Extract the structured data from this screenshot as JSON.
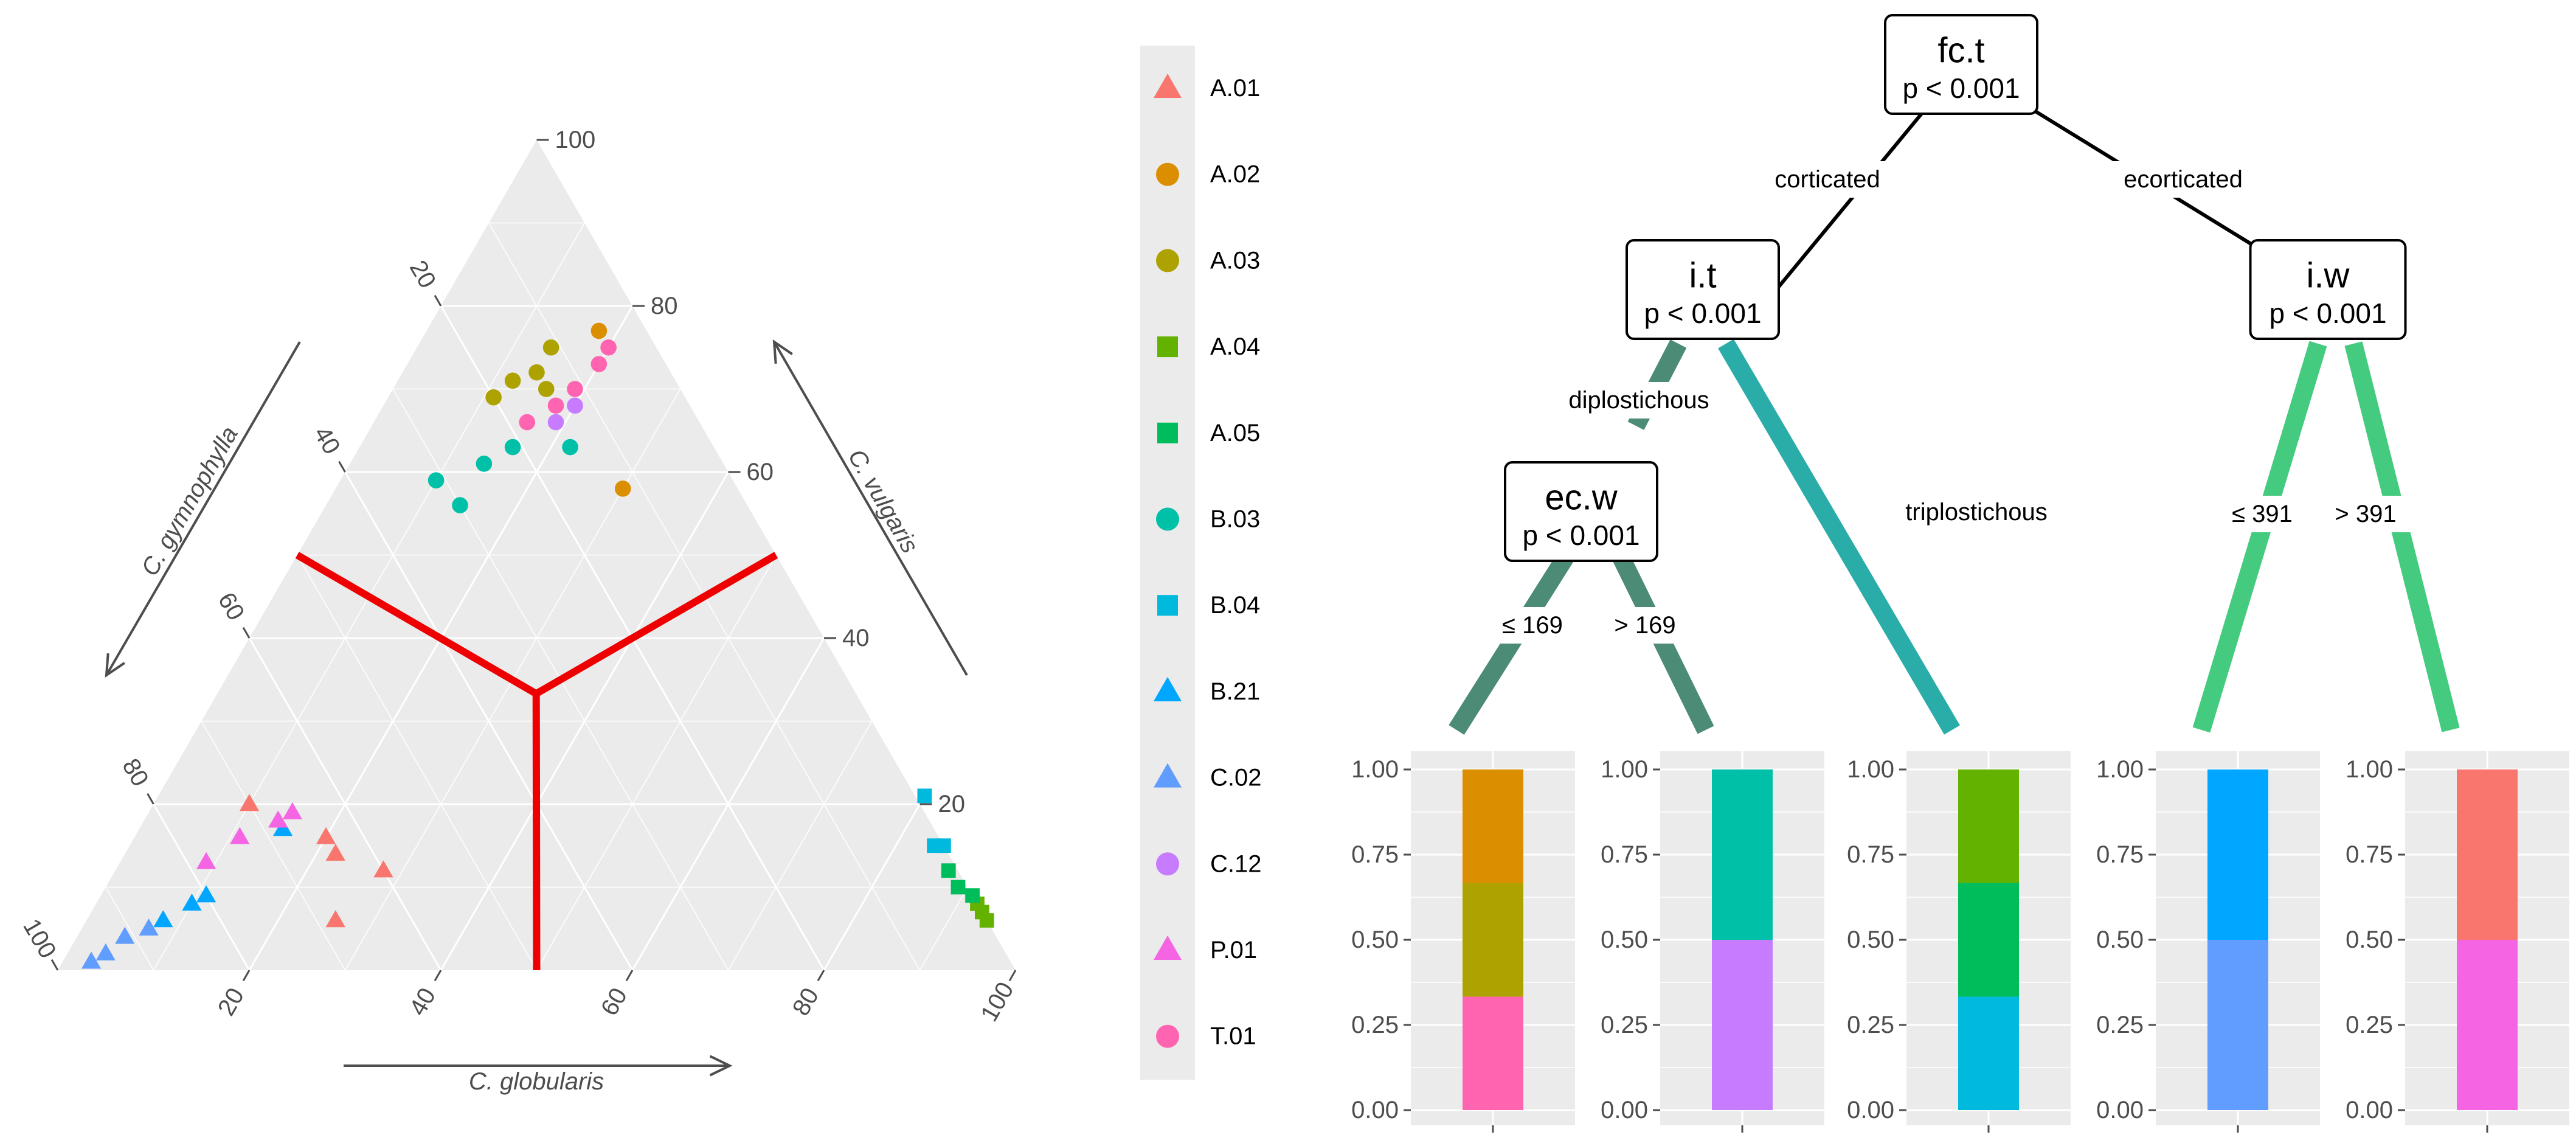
{
  "chart_data": [
    {
      "type": "scatter",
      "subtype": "ternary",
      "axes": {
        "bottom": {
          "label": "C. globularis",
          "ticks": [
            "20",
            "40",
            "60",
            "80",
            "100"
          ]
        },
        "right": {
          "label": "C. vulgaris",
          "ticks": [
            "20",
            "40",
            "60",
            "80",
            "100"
          ]
        },
        "left": {
          "label": "C. gymnophylla",
          "ticks": [
            "20",
            "40",
            "60",
            "80",
            "100"
          ]
        }
      },
      "grid": true,
      "boundary_point": {
        "globularis": 33.3,
        "vulgaris": 33.3,
        "gymnophylla": 33.3
      },
      "boundary_color": "#ee0000",
      "groups": [
        {
          "name": "A.01",
          "shape": "triangle",
          "color": "#F8766D",
          "points": [
            [
              28,
              12,
              60
            ],
            [
              26,
              6,
              68
            ],
            [
              22,
              14,
              64
            ],
            [
              20,
              16,
              64
            ],
            [
              10,
              20,
              70
            ]
          ]
        },
        {
          "name": "A.02",
          "shape": "circle",
          "color": "#DB8E00",
          "points": [
            [
              18,
              77,
              5
            ],
            [
              30,
              58,
              12
            ]
          ]
        },
        {
          "name": "A.03",
          "shape": "circle",
          "color": "#AEA200",
          "points": [
            [
              14,
              75,
              11
            ],
            [
              14,
              72,
              14
            ],
            [
              11,
              69,
              20
            ],
            [
              12,
              71,
              17
            ],
            [
              16,
              70,
              14
            ]
          ]
        },
        {
          "name": "A.04",
          "shape": "square",
          "color": "#64B200",
          "points": [
            [
              94,
              6,
              0
            ],
            [
              93,
              7,
              0
            ],
            [
              92,
              8,
              0
            ]
          ]
        },
        {
          "name": "A.05",
          "shape": "square",
          "color": "#00BD5C",
          "points": [
            [
              91,
              9,
              0
            ],
            [
              89,
              10,
              1
            ],
            [
              87,
              12,
              1
            ]
          ]
        },
        {
          "name": "B.03",
          "shape": "circle",
          "color": "#00C1A7",
          "points": [
            [
              22,
              63,
              15
            ],
            [
              16,
              63,
              21
            ],
            [
              14,
              61,
              25
            ],
            [
              10,
              59,
              31
            ],
            [
              14,
              56,
              30
            ]
          ]
        },
        {
          "name": "B.04",
          "shape": "square",
          "color": "#00BADE",
          "points": [
            [
              85,
              15,
              0
            ],
            [
              84,
              15,
              1
            ],
            [
              80,
              21,
              0
            ]
          ]
        },
        {
          "name": "B.21",
          "shape": "triangle",
          "color": "#00A6FF",
          "points": [
            [
              15,
              17,
              68
            ],
            [
              11,
              9,
              80
            ],
            [
              10,
              8,
              82
            ],
            [
              8,
              6,
              86
            ]
          ]
        },
        {
          "name": "C.02",
          "shape": "triangle",
          "color": "#619CFF",
          "points": [
            [
              7,
              5,
              88
            ],
            [
              5,
              4,
              91
            ],
            [
              4,
              2,
              94
            ],
            [
              3,
              1,
              96
            ]
          ]
        },
        {
          "name": "C.12",
          "shape": "circle",
          "color": "#C77CFF",
          "points": [
            [
              20,
              68,
              12
            ],
            [
              19,
              66,
              15
            ]
          ]
        },
        {
          "name": "P.01",
          "shape": "triangle",
          "color": "#F564E3",
          "points": [
            [
              15,
              19,
              66
            ],
            [
              14,
              18,
              68
            ],
            [
              11,
              16,
              73
            ],
            [
              9,
              13,
              78
            ]
          ]
        },
        {
          "name": "T.01",
          "shape": "circle",
          "color": "#FF64B0",
          "points": [
            [
              20,
              75,
              5
            ],
            [
              20,
              73,
              7
            ],
            [
              19,
              70,
              11
            ],
            [
              16,
              66,
              18
            ],
            [
              18,
              68,
              14
            ]
          ]
        }
      ]
    },
    {
      "type": "tree",
      "nodes": [
        {
          "id": "n1",
          "var": "fc.t",
          "p": "p <  0.001"
        },
        {
          "id": "n2",
          "var": "i.t",
          "p": "p <  0.001"
        },
        {
          "id": "n3",
          "var": "ec.w",
          "p": "p <  0.001"
        },
        {
          "id": "n4",
          "var": "i.w",
          "p": "p <  0.001"
        }
      ],
      "edges": [
        {
          "from": "n1",
          "to": "n2",
          "label": "corticated"
        },
        {
          "from": "n1",
          "to": "n4",
          "label": "ecorticated"
        },
        {
          "from": "n2",
          "to": "n3",
          "label": "diplostichous"
        },
        {
          "from": "n2",
          "to": "leaf3",
          "label": "triplostichous"
        },
        {
          "from": "n3",
          "to": "leaf1",
          "label": "≤  169"
        },
        {
          "from": "n3",
          "to": "leaf2",
          "label": ">  169"
        },
        {
          "from": "n4",
          "to": "leaf4",
          "label": "≤  391"
        },
        {
          "from": "n4",
          "to": "leaf5",
          "label": ">  391"
        }
      ],
      "leaf_axis": {
        "ticks": [
          "0.00",
          "0.25",
          "0.50",
          "0.75",
          "1.00"
        ],
        "ylim": [
          0,
          1
        ]
      },
      "leaves": [
        {
          "id": "leaf1",
          "segments": [
            {
              "group": "T.01",
              "color": "#FF64B0",
              "value": 0.333
            },
            {
              "group": "A.03",
              "color": "#AEA200",
              "value": 0.334
            },
            {
              "group": "A.02",
              "color": "#DB8E00",
              "value": 0.333
            }
          ]
        },
        {
          "id": "leaf2",
          "segments": [
            {
              "group": "C.12",
              "color": "#C77CFF",
              "value": 0.5
            },
            {
              "group": "B.03",
              "color": "#00C1A7",
              "value": 0.5
            }
          ]
        },
        {
          "id": "leaf3",
          "segments": [
            {
              "group": "B.04",
              "color": "#00BADE",
              "value": 0.333
            },
            {
              "group": "A.05",
              "color": "#00BD5C",
              "value": 0.334
            },
            {
              "group": "A.04",
              "color": "#64B200",
              "value": 0.333
            }
          ]
        },
        {
          "id": "leaf4",
          "segments": [
            {
              "group": "C.02",
              "color": "#619CFF",
              "value": 0.5
            },
            {
              "group": "B.21",
              "color": "#00A6FF",
              "value": 0.5
            }
          ]
        },
        {
          "id": "leaf5",
          "segments": [
            {
              "group": "P.01",
              "color": "#F564E3",
              "value": 0.5
            },
            {
              "group": "A.01",
              "color": "#F8766D",
              "value": 0.5
            }
          ]
        }
      ]
    }
  ]
}
